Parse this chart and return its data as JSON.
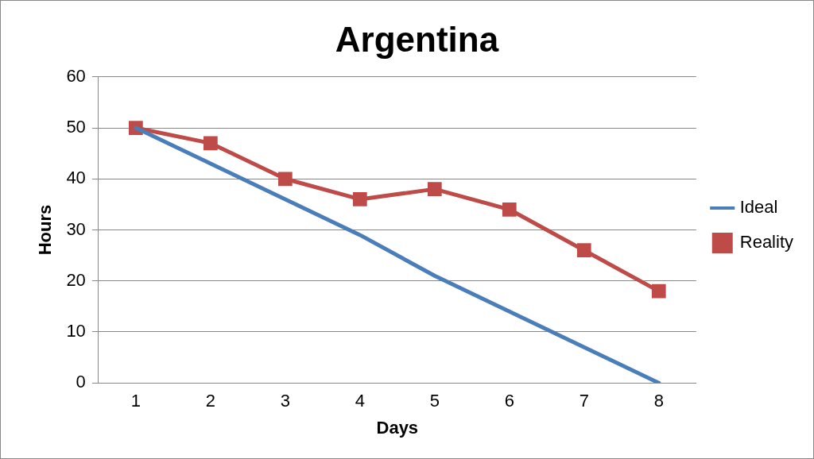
{
  "chart_data": {
    "type": "line",
    "title": "Argentina",
    "xlabel": "Days",
    "ylabel": "Hours",
    "categories": [
      "1",
      "2",
      "3",
      "4",
      "5",
      "6",
      "7",
      "8"
    ],
    "series": [
      {
        "name": "Ideal",
        "color": "#4a7ebb",
        "values": [
          50,
          43,
          36,
          29,
          21,
          14,
          7,
          0
        ],
        "marker": "none"
      },
      {
        "name": "Reality",
        "color": "#be4b48",
        "values": [
          50,
          47,
          40,
          36,
          38,
          34,
          26,
          18
        ],
        "marker": "square"
      }
    ],
    "ylim": [
      0,
      60
    ],
    "yticks": [
      0,
      10,
      20,
      30,
      40,
      50,
      60
    ],
    "grid": "y",
    "legend": "right",
    "line_style": "solid"
  }
}
